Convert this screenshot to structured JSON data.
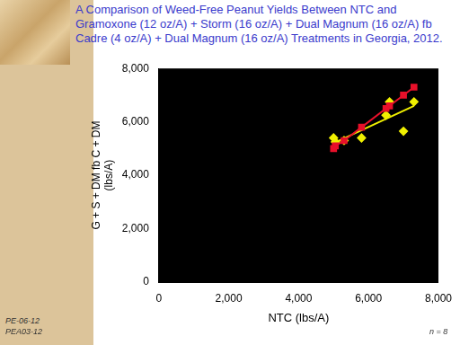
{
  "chart_data": {
    "type": "scatter",
    "title": "A Comparison of Weed-Free Peanut Yields Between NTC and Gramoxone (12 oz/A) + Storm (16 oz/A) + Dual Magnum (16 oz/A) fb Cadre (4 oz/A) + Dual Magnum (16 oz/A) Treatments in Georgia, 2012.",
    "x_label": "NTC (lbs/A)",
    "y_label": [
      "G + S + DM fb C + DM",
      "(lbs/A)"
    ],
    "annotations": [
      "PE-06-12",
      "PEA03-12",
      "n = 8"
    ],
    "xlim": [
      0,
      8000
    ],
    "ylim": [
      0,
      8000
    ],
    "xticks": [
      0,
      2000,
      4000,
      6000,
      8000
    ],
    "yticks": [
      0,
      2000,
      4000,
      6000,
      8000
    ],
    "grid": false,
    "series": [
      {
        "type": "line",
        "color": "#e8102a",
        "marker": "square",
        "line_style": "solid",
        "x": [
          5000,
          5050,
          5300,
          5800,
          6500,
          6600,
          7000,
          7300
        ],
        "values": [
          5000,
          5100,
          5300,
          5800,
          6500,
          6600,
          7000,
          7300
        ]
      },
      {
        "type": "scatter",
        "color": "#f0f000",
        "marker": "diamond",
        "x": [
          5000,
          5050,
          5300,
          5800,
          6500,
          6600,
          7000,
          7300
        ],
        "values": [
          5400,
          5250,
          5300,
          5400,
          6250,
          6750,
          5650,
          6750
        ]
      },
      {
        "type": "line",
        "color": "#f0f000",
        "marker": "none",
        "line_style": "solid",
        "x": [
          5000,
          7300
        ],
        "values": [
          5200,
          6600
        ]
      }
    ]
  }
}
